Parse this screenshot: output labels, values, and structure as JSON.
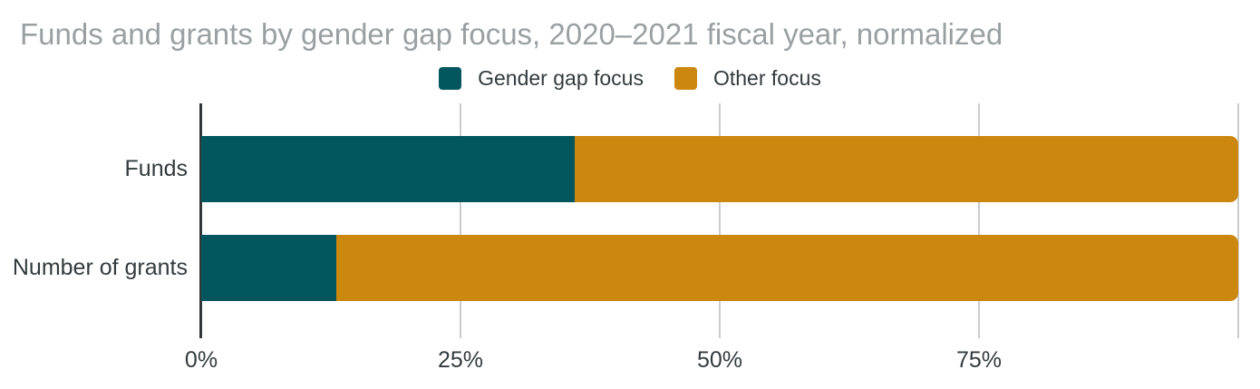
{
  "colors": {
    "background": "#ffffff",
    "title_text": "#9aa0a2",
    "label_text": "#333b3e",
    "axis_line": "#333638",
    "gridline": "#cccccc",
    "gender_gap_focus": "#04565e",
    "other_focus": "#cc870f"
  },
  "chart_data": {
    "type": "bar",
    "orientation": "horizontal",
    "stacked": true,
    "normalized": true,
    "title": "Funds and grants by gender gap focus, 2020–2021 fiscal year, normalized",
    "categories": [
      "Funds",
      "Number of grants"
    ],
    "series": [
      {
        "name": "Gender gap focus",
        "color": "#04565e",
        "values": [
          36,
          13
        ]
      },
      {
        "name": "Other focus",
        "color": "#cc870f",
        "values": [
          64,
          87
        ]
      }
    ],
    "xlabel": "",
    "ylabel": "",
    "xlim": [
      0,
      100
    ],
    "x_ticks": [
      {
        "label": "0%",
        "value": 0
      },
      {
        "label": "25%",
        "value": 25
      },
      {
        "label": "50%",
        "value": 50
      },
      {
        "label": "75%",
        "value": 75
      }
    ],
    "gridline_values": [
      25,
      50,
      75,
      100
    ],
    "grid": true,
    "legend_position": "top-center"
  }
}
